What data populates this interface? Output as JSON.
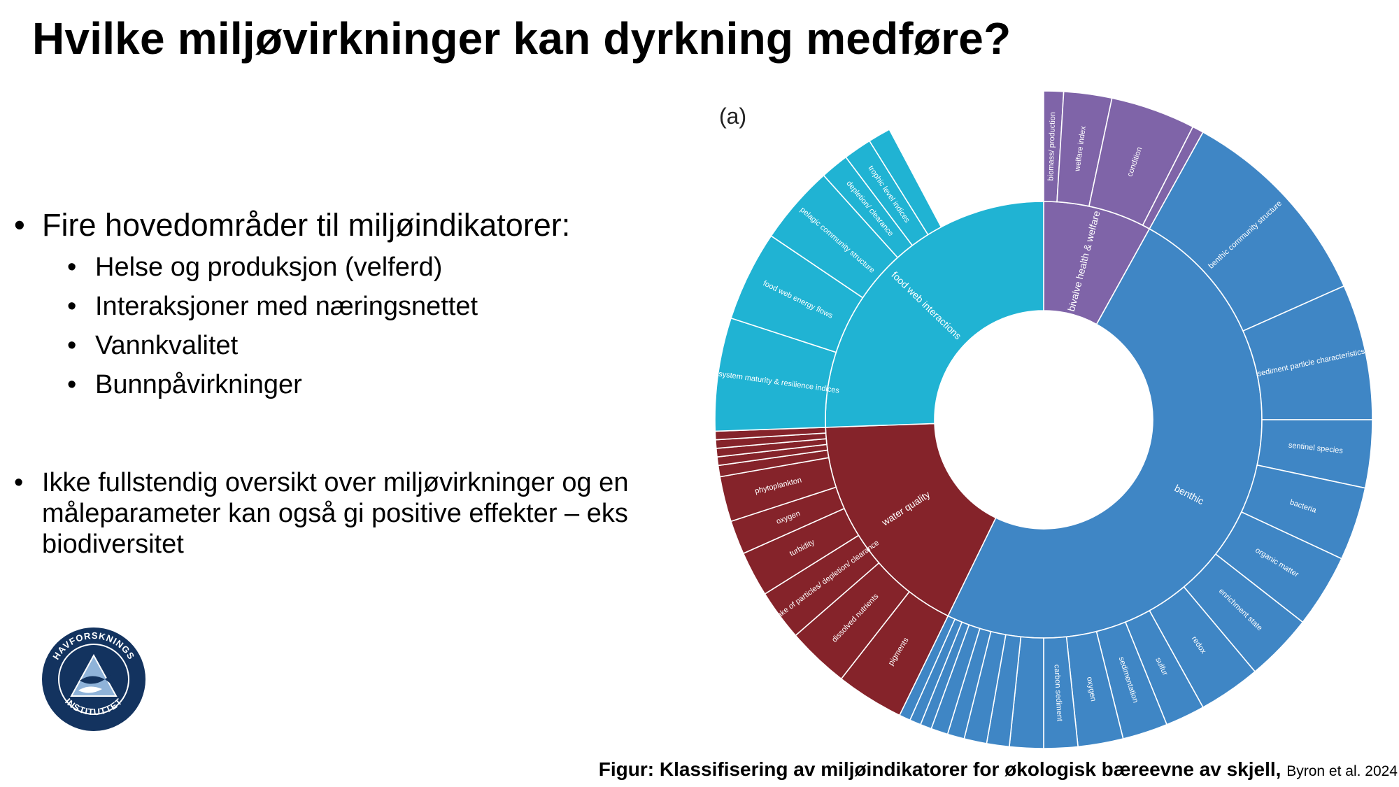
{
  "slide": {
    "title": "Hvilke miljøvirkninger kan dyrkning medføre?",
    "bullets": [
      {
        "text": "Fire hovedområder til miljøindikatorer:",
        "sub": [
          "Helse og produksjon (velferd)",
          "Interaksjoner med næringsnettet",
          "Vannkvalitet",
          "Bunnpåvirkninger"
        ]
      },
      {
        "text": "Ikke fullstendig oversikt over miljøvirkninger og en måleparameter kan også gi positive effekter – eks biodiversitet"
      }
    ],
    "caption_bold": "Figur: Klassifisering av miljøindikatorer for økologisk bæreevne av skjell,",
    "caption_cite": "Byron et al. 2024",
    "logo_text": "HAVFORSKNINGS INSTITUTTET"
  },
  "chart_data": {
    "type": "sunburst",
    "panel_label": "(a)",
    "colors": {
      "benthic": "#3f86c5",
      "water_quality": "#85232a",
      "food_web": "#20b3d3",
      "bivalve": "#7f64a8",
      "separator": "#ffffff"
    },
    "inner": [
      {
        "name": "bivalve health & welfare",
        "color": "bivalve",
        "start_deg": -90,
        "end_deg": -61
      },
      {
        "name": "benthic",
        "color": "benthic",
        "start_deg": -61,
        "end_deg": 116
      },
      {
        "name": "water quality",
        "color": "water_quality",
        "start_deg": 116,
        "end_deg": 178
      },
      {
        "name": "food web interactions",
        "color": "food_web",
        "start_deg": 178,
        "end_deg": 270
      }
    ],
    "outer": [
      {
        "name": "biomass/ production",
        "color": "bivalve",
        "start_deg": -90,
        "end_deg": -86.5
      },
      {
        "name": "welfare index",
        "color": "bivalve",
        "start_deg": -86.5,
        "end_deg": -78
      },
      {
        "name": "condition",
        "color": "bivalve",
        "start_deg": -78,
        "end_deg": -63
      },
      {
        "name": "",
        "color": "bivalve",
        "start_deg": -63,
        "end_deg": -61
      },
      {
        "name": "benthic community structure",
        "color": "benthic",
        "start_deg": -61,
        "end_deg": -24
      },
      {
        "name": "sediment particle characteristics",
        "color": "benthic",
        "start_deg": -24,
        "end_deg": 0
      },
      {
        "name": "sentinel species",
        "color": "benthic",
        "start_deg": 0,
        "end_deg": 12
      },
      {
        "name": "bacteria",
        "color": "benthic",
        "start_deg": 12,
        "end_deg": 25
      },
      {
        "name": "organic matter",
        "color": "benthic",
        "start_deg": 25,
        "end_deg": 38
      },
      {
        "name": "enrichment state",
        "color": "benthic",
        "start_deg": 38,
        "end_deg": 50
      },
      {
        "name": "redox",
        "color": "benthic",
        "start_deg": 50,
        "end_deg": 61
      },
      {
        "name": "sulfur",
        "color": "benthic",
        "start_deg": 61,
        "end_deg": 68
      },
      {
        "name": "sedimentation",
        "color": "benthic",
        "start_deg": 68,
        "end_deg": 76
      },
      {
        "name": "oxygen",
        "color": "benthic",
        "start_deg": 76,
        "end_deg": 84
      },
      {
        "name": "carbon sediment",
        "color": "benthic",
        "start_deg": 84,
        "end_deg": 90
      },
      {
        "name": "",
        "color": "benthic",
        "start_deg": 90,
        "end_deg": 96
      },
      {
        "name": "",
        "color": "benthic",
        "start_deg": 96,
        "end_deg": 100
      },
      {
        "name": "",
        "color": "benthic",
        "start_deg": 100,
        "end_deg": 104
      },
      {
        "name": "",
        "color": "benthic",
        "start_deg": 104,
        "end_deg": 107
      },
      {
        "name": "",
        "color": "benthic",
        "start_deg": 107,
        "end_deg": 110
      },
      {
        "name": "",
        "color": "benthic",
        "start_deg": 110,
        "end_deg": 112
      },
      {
        "name": "",
        "color": "benthic",
        "start_deg": 112,
        "end_deg": 114
      },
      {
        "name": "",
        "color": "benthic",
        "start_deg": 114,
        "end_deg": 116
      },
      {
        "name": "pigments",
        "color": "water_quality",
        "start_deg": 116,
        "end_deg": 128
      },
      {
        "name": "dissolved nutrients",
        "color": "water_quality",
        "start_deg": 128,
        "end_deg": 139
      },
      {
        "name": "uptake of particles/ depletion/ clearance",
        "color": "water_quality",
        "start_deg": 139,
        "end_deg": 148
      },
      {
        "name": "turbidity",
        "color": "water_quality",
        "start_deg": 148,
        "end_deg": 156
      },
      {
        "name": "oxygen",
        "color": "water_quality",
        "start_deg": 156,
        "end_deg": 162
      },
      {
        "name": "phytoplankton",
        "color": "water_quality",
        "start_deg": 162,
        "end_deg": 170
      },
      {
        "name": "",
        "color": "water_quality",
        "start_deg": 170,
        "end_deg": 172
      },
      {
        "name": "",
        "color": "water_quality",
        "start_deg": 172,
        "end_deg": 173.5
      },
      {
        "name": "",
        "color": "water_quality",
        "start_deg": 173.5,
        "end_deg": 175
      },
      {
        "name": "",
        "color": "water_quality",
        "start_deg": 175,
        "end_deg": 176.5
      },
      {
        "name": "",
        "color": "water_quality",
        "start_deg": 176.5,
        "end_deg": 178
      },
      {
        "name": "ecosystem maturity & resilience indices",
        "color": "food_web",
        "start_deg": 178,
        "end_deg": 198
      },
      {
        "name": "food web energy flows",
        "color": "food_web",
        "start_deg": 198,
        "end_deg": 214
      },
      {
        "name": "pelagic community structure",
        "color": "food_web",
        "start_deg": 214,
        "end_deg": 228
      },
      {
        "name": "depletion/ clearance",
        "color": "food_web",
        "start_deg": 228,
        "end_deg": 233
      },
      {
        "name": "trophic level indices",
        "color": "food_web",
        "start_deg": 233,
        "end_deg": 238
      },
      {
        "name": "",
        "color": "food_web",
        "start_deg": 238,
        "end_deg": 242
      }
    ]
  }
}
